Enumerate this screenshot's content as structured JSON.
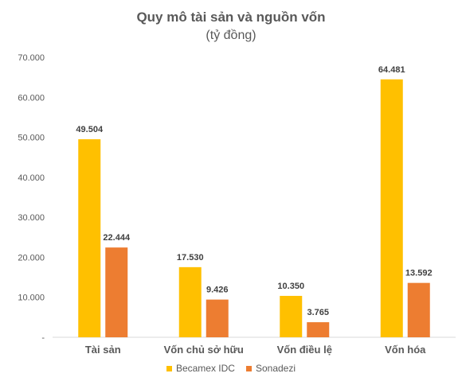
{
  "chart_data": {
    "type": "bar",
    "title": "Quy mô tài sản và nguồn vốn",
    "subtitle": "(tỷ đồng)",
    "categories": [
      "Tài sản",
      "Vốn chủ sở hữu",
      "Vốn điều lệ",
      "Vốn hóa"
    ],
    "series": [
      {
        "name": "Becamex IDC",
        "color": "#FFC000",
        "values": [
          49504,
          17530,
          10350,
          64481
        ],
        "labels": [
          "49.504",
          "17.530",
          "10.350",
          "64.481"
        ]
      },
      {
        "name": "Sonadezi",
        "color": "#ED7D31",
        "values": [
          22444,
          9426,
          3765,
          13592
        ],
        "labels": [
          "22.444",
          "9.426",
          "3.765",
          "13.592"
        ]
      }
    ],
    "ylim": [
      0,
      70000
    ],
    "yticks": [
      "-",
      "10.000",
      "20.000",
      "30.000",
      "40.000",
      "50.000",
      "60.000",
      "70.000"
    ],
    "grid": false,
    "legend": "bottom"
  }
}
